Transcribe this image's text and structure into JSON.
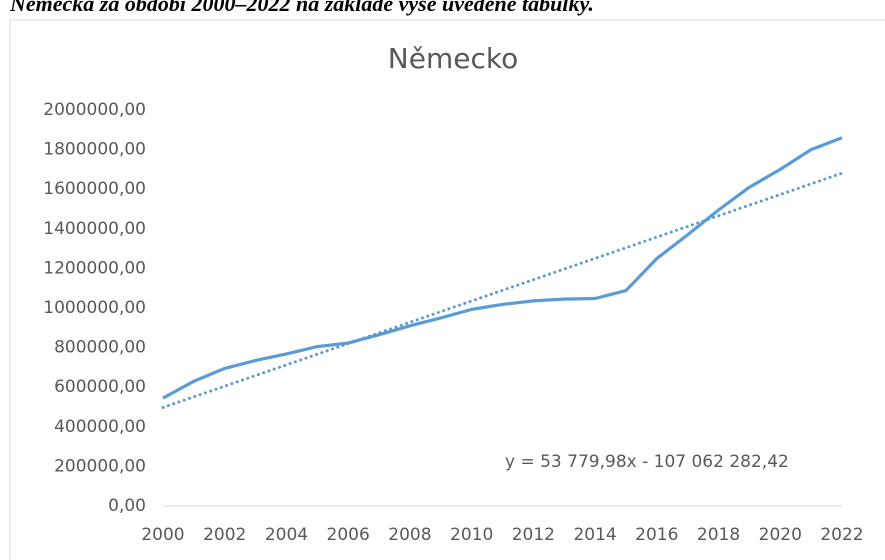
{
  "caption": "Německa za období 2000–2022 na základě výše uvedené tabulky.",
  "chart_data": {
    "type": "line",
    "title": "Německo",
    "x": [
      2000,
      2001,
      2002,
      2003,
      2004,
      2005,
      2006,
      2007,
      2008,
      2009,
      2010,
      2011,
      2012,
      2013,
      2014,
      2015,
      2016,
      2017,
      2018,
      2019,
      2020,
      2021,
      2022
    ],
    "series": [
      {
        "color": "#5b9bd5",
        "values": [
          545000,
          630000,
          695000,
          735000,
          768000,
          805000,
          823000,
          865000,
          910000,
          950000,
          993000,
          1018000,
          1036000,
          1045000,
          1048000,
          1088000,
          1250000,
          1370000,
          1495000,
          1610000,
          1700000,
          1800000,
          1860000
        ]
      }
    ],
    "trendline": {
      "slope": 53779.98,
      "intercept": -107062282.42,
      "label": "y = 53 779,98x - 107 062 282,42",
      "style": "dotted"
    },
    "xlim": [
      2000,
      2022
    ],
    "xticks": [
      2000,
      2002,
      2004,
      2006,
      2008,
      2010,
      2012,
      2014,
      2016,
      2018,
      2020,
      2022
    ],
    "ylim": [
      0,
      2000000
    ],
    "yticks": [
      {
        "value": 0,
        "label": "0,00"
      },
      {
        "value": 200000,
        "label": "200000,00"
      },
      {
        "value": 400000,
        "label": "400000,00"
      },
      {
        "value": 600000,
        "label": "600000,00"
      },
      {
        "value": 800000,
        "label": "800000,00"
      },
      {
        "value": 1000000,
        "label": "1000000,00"
      },
      {
        "value": 1200000,
        "label": "1200000,00"
      },
      {
        "value": 1400000,
        "label": "1400000,00"
      },
      {
        "value": 1600000,
        "label": "1600000,00"
      },
      {
        "value": 1800000,
        "label": "1800000,00"
      },
      {
        "value": 2000000,
        "label": "2000000,00"
      }
    ],
    "grid": false
  }
}
